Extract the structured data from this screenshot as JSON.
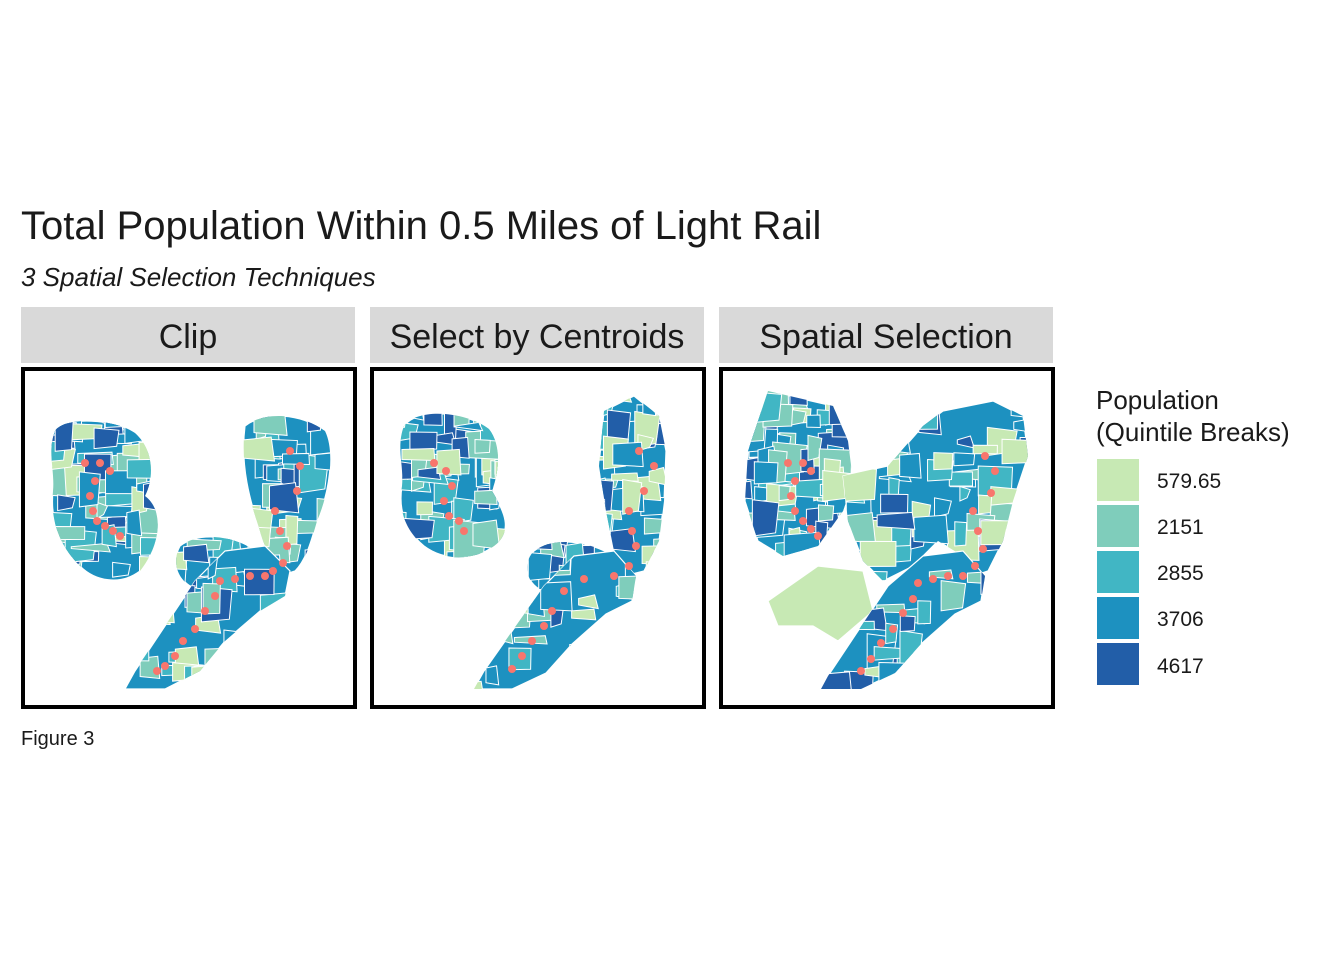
{
  "figure": {
    "title": "Total Population Within 0.5 Miles of Light Rail",
    "subtitle": "3 Spatial Selection Techniques",
    "caption": "Figure 3"
  },
  "panels": [
    {
      "label": "Clip"
    },
    {
      "label": "Select by Centroids"
    },
    {
      "label": "Spatial Selection"
    }
  ],
  "legend": {
    "title_line1": "Population",
    "title_line2": "(Quintile Breaks)",
    "items": [
      {
        "label": "579.65",
        "color": "#c7e9b4"
      },
      {
        "label": "2151",
        "color": "#7fcdbb"
      },
      {
        "label": "2855",
        "color": "#41b6c4"
      },
      {
        "label": "3706",
        "color": "#1d91c0"
      },
      {
        "label": "4617",
        "color": "#225ea8"
      }
    ]
  },
  "colors": {
    "station": "#f8766d",
    "boundary": "#ffffff",
    "strip": "#d9d9d9",
    "frame": "#000000"
  }
}
